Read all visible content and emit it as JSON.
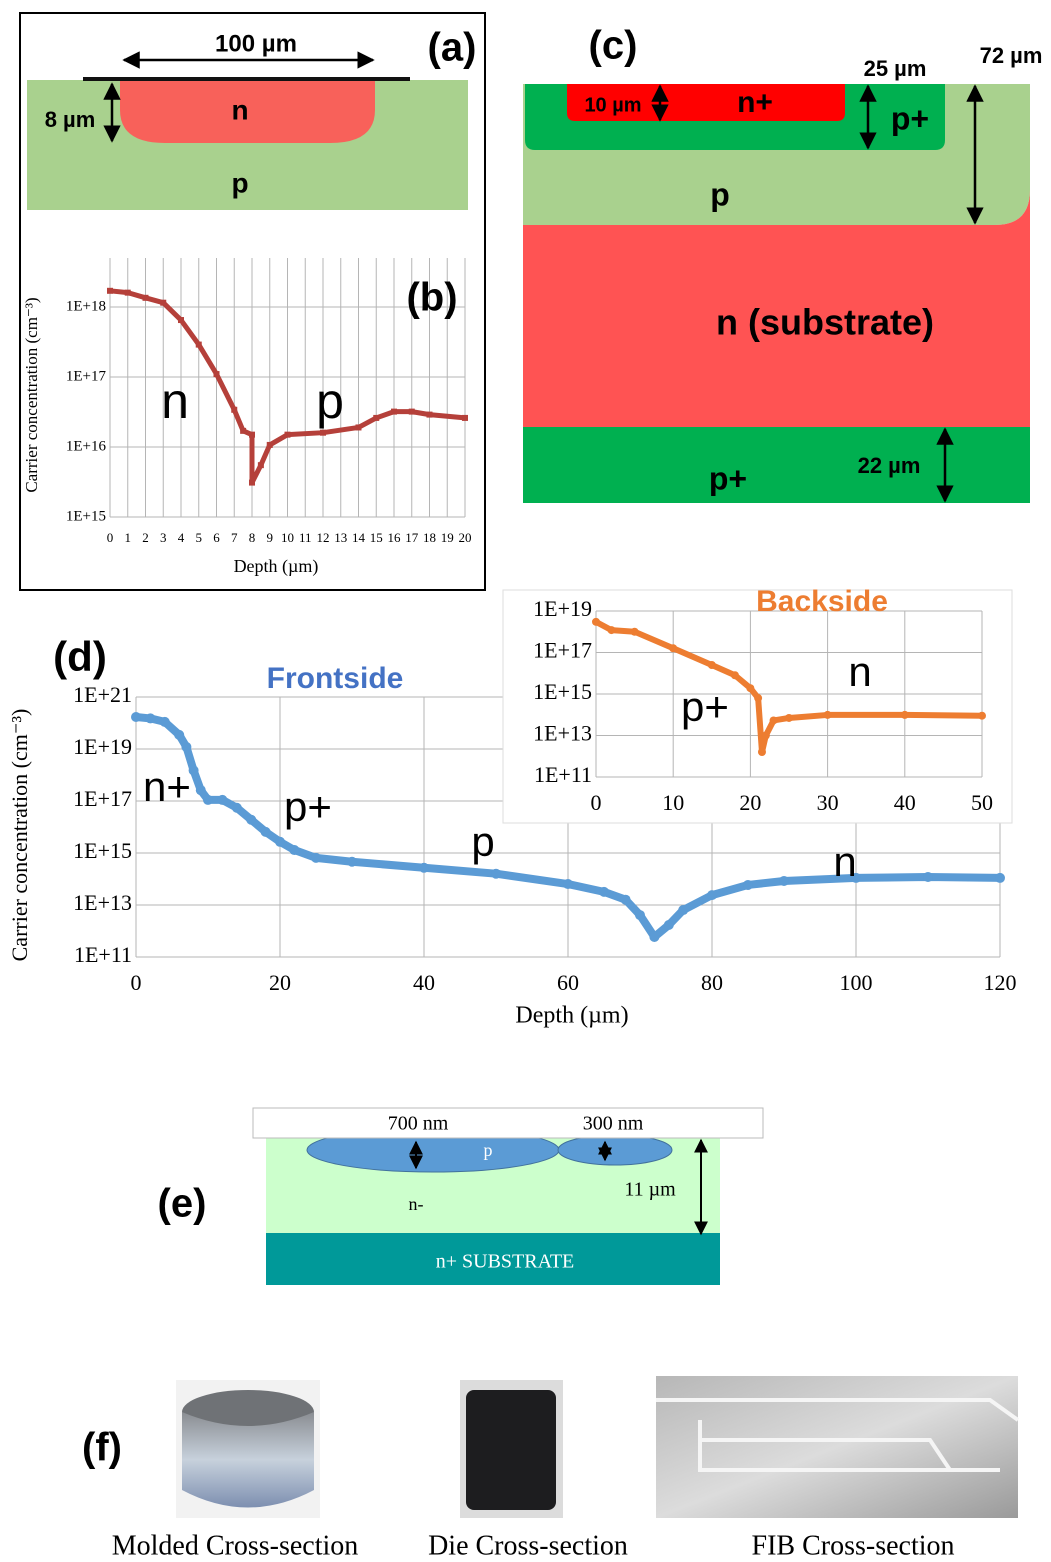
{
  "panel_a": {
    "label": "(a)",
    "width_label": "100 µm",
    "depth_label": "8 µm",
    "n_region": "n",
    "p_region": "p"
  },
  "panel_c": {
    "label": "(c)",
    "pplus_depth": "25 µm",
    "p_depth": "72 µm",
    "nplus_depth": "10 µm",
    "nplus_region": "n+",
    "pplus_region": "p+",
    "p_region": "p",
    "substrate_region": "n (substrate)",
    "back_region": "p+",
    "back_depth": "22 µm"
  },
  "panel_e": {
    "label": "(e)",
    "left_depth": "700 nm",
    "right_depth": "300 nm",
    "p_region": "p",
    "n_region": "n-",
    "epi_depth": "11 µm",
    "substrate": "n+ SUBSTRATE"
  },
  "panel_f": {
    "label": "(f)",
    "captions": [
      "Molded Cross-section",
      "Die Cross-section",
      "FIB Cross-section"
    ]
  },
  "chart_data": [
    {
      "type": "line",
      "panel_label": "(b)",
      "x_label": "Depth (µm)",
      "y_label": "Carrier concentration (cm⁻³)",
      "log_y": true,
      "grid": true,
      "marker": "square",
      "color": "#b5403a",
      "annotations": [
        "n",
        "p"
      ],
      "x": [
        0,
        1,
        2,
        3,
        4,
        5,
        6,
        7,
        7.5,
        8,
        8,
        8.5,
        9,
        10,
        12,
        14,
        15,
        16,
        17,
        18,
        20
      ],
      "values": [
        1.7e+18,
        1.6e+18,
        1.35e+18,
        1.15e+18,
        6.5e+17,
        2.9e+17,
        1.1e+17,
        3.4e+16,
        1.7e+16,
        1.5e+16,
        3100000000000000.0,
        5500000000000000.0,
        1.07e+16,
        1.5e+16,
        1.6e+16,
        1.9e+16,
        2.6e+16,
        3.2e+16,
        3.2e+16,
        2.9e+16,
        2.6e+16
      ],
      "xlim": [
        0,
        20
      ],
      "xticks": [
        0,
        1,
        2,
        3,
        4,
        5,
        6,
        7,
        8,
        9,
        10,
        11,
        12,
        13,
        14,
        15,
        16,
        17,
        18,
        19,
        20
      ],
      "ylim": [
        1000000000000000.0,
        5e+18
      ],
      "yticks": [
        {
          "value": 1000000000000000.0,
          "label": "1E+15"
        },
        {
          "value": 1e+16,
          "label": "1E+16"
        },
        {
          "value": 1e+17,
          "label": "1E+17"
        },
        {
          "value": 1e+18,
          "label": "1E+18"
        }
      ]
    },
    {
      "type": "line",
      "panel_label": "(d)",
      "title": "Frontside",
      "x_label": "Depth (µm)",
      "y_label": "Carrier concentration (cm⁻³)",
      "log_y": true,
      "grid": true,
      "marker": "circle",
      "color": "#5b9bd5",
      "annotations": [
        "n+",
        "p+",
        "p",
        "n"
      ],
      "x": [
        0,
        2,
        4,
        6,
        7,
        8,
        9,
        10,
        12,
        14,
        16,
        18,
        20,
        22,
        25,
        30,
        40,
        50,
        60,
        65,
        68,
        70,
        72,
        74,
        76,
        80,
        85,
        90,
        100,
        110,
        120
      ],
      "values": [
        1.7e+20,
        1.5e+20,
        1.1e+20,
        3.5e+19,
        1.2e+19,
        1.5e+18,
        2.6e+17,
        1.1e+17,
        1.1e+17,
        5.5e+16,
        1.9e+16,
        6500000000000000.0,
        2700000000000000.0,
        1300000000000000.0,
        650000000000000.0,
        460000000000000.0,
        270000000000000.0,
        160000000000000.0,
        64000000000000.0,
        32000000000000.0,
        16000000000000.0,
        4100000000000.0,
        590000000000.0,
        1700000000000.0,
        6400000000000.0,
        24000000000000.0,
        59000000000000.0,
        84000000000000.0,
        110000000000000.0,
        120000000000000.0,
        110000000000000.0
      ],
      "xlim": [
        0,
        120
      ],
      "xticks": [
        0,
        20,
        40,
        60,
        80,
        100,
        120
      ],
      "ylim": [
        100000000000.0,
        1e+21
      ],
      "yticks": [
        {
          "value": 100000000000.0,
          "label": "1E+11"
        },
        {
          "value": 10000000000000.0,
          "label": "1E+13"
        },
        {
          "value": 1000000000000000.0,
          "label": "1E+15"
        },
        {
          "value": 1e+17,
          "label": "1E+17"
        },
        {
          "value": 1e+19,
          "label": "1E+19"
        },
        {
          "value": 1e+21,
          "label": "1E+21"
        }
      ]
    },
    {
      "type": "line",
      "title": "Backside",
      "log_y": true,
      "grid": true,
      "marker": "circle",
      "color": "#ed7d31",
      "annotations": [
        "p+",
        "n"
      ],
      "x": [
        0,
        2,
        5,
        10,
        15,
        18,
        20,
        21,
        21.5,
        22,
        23,
        25,
        30,
        40,
        50
      ],
      "values": [
        3e+18,
        1.2e+18,
        1e+18,
        1.6e+17,
        2.5e+16,
        8000000000000000.0,
        1900000000000000.0,
        640000000000000.0,
        1600000000000.0,
        10000000000000.0,
        53000000000000.0,
        70000000000000.0,
        98000000000000.0,
        98000000000000.0,
        90000000000000.0
      ],
      "xlim": [
        0,
        50
      ],
      "xticks": [
        0,
        10,
        20,
        30,
        40,
        50
      ],
      "ylim": [
        100000000000.0,
        1e+19
      ],
      "yticks": [
        {
          "value": 100000000000.0,
          "label": "1E+11"
        },
        {
          "value": 10000000000000.0,
          "label": "1E+13"
        },
        {
          "value": 1000000000000000.0,
          "label": "1E+15"
        },
        {
          "value": 1e+17,
          "label": "1E+17"
        },
        {
          "value": 1e+19,
          "label": "1E+19"
        }
      ]
    }
  ]
}
